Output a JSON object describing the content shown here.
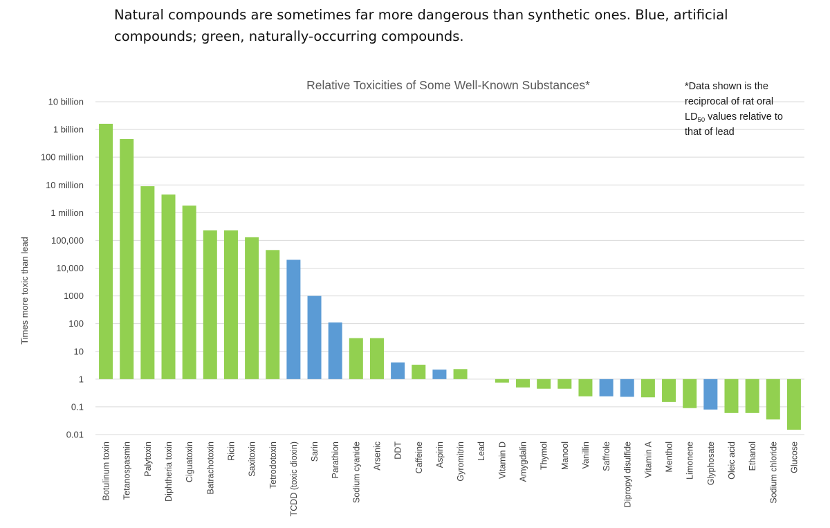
{
  "caption": "Natural compounds are sometimes far more dangerous than synthetic ones. Blue, artificial compounds; green, naturally-occurring compounds.",
  "colors": {
    "natural": "#92d050",
    "artificial": "#5b9bd5",
    "grid": "#d9d9d9",
    "text": "#404040",
    "title": "#595959"
  },
  "chart_data": {
    "type": "bar",
    "title": "Relative Toxicities of Some Well-Known Substances*",
    "ylabel": "Times more toxic than lead",
    "xlabel": "",
    "yscale": "log",
    "ylim": [
      0.01,
      10000000000
    ],
    "baseline": 1,
    "grid": true,
    "yticks": [
      10000000000,
      1000000000,
      100000000,
      10000000,
      1000000,
      100000,
      10000,
      1000,
      100,
      10,
      1,
      0.1,
      0.01
    ],
    "yticklabels": [
      "10 billion",
      "1 billion",
      "100 million",
      "10 million",
      "1 million",
      "100,000",
      "10,000",
      "1000",
      "100",
      "10",
      "1",
      "0.1",
      "0.01"
    ],
    "note": {
      "line1": "*Data shown is the",
      "line2": "reciprocal of rat oral",
      "line3_prefix": "LD",
      "line3_sub": "50",
      "line3_suffix": " values relative to",
      "line4": "that of lead"
    },
    "categories": [
      "Botulinum toxin",
      "Tetanospasmin",
      "Palytoxin",
      "Diphtheria toxin",
      "Ciguatoxin",
      "Batrachotoxin",
      "Ricin",
      "Saxitoxin",
      "Tetrodotoxin",
      "TCDD (toxic dioxin)",
      "Sarin",
      "Parathion",
      "Sodium cyanide",
      "Arsenic",
      "DDT",
      "Caffeine",
      "Aspirin",
      "Gyromitrin",
      "Lead",
      "Vitamin D",
      "Amygdalin",
      "Thymol",
      "Manool",
      "Vanillin",
      "Saffrole",
      "Dipropyl disulfide",
      "Vitamin A",
      "Menthol",
      "Limonene",
      "Glyphosate",
      "Oleic acid",
      "Ethanol",
      "Sodium chloride",
      "Glucose"
    ],
    "values": [
      1600000000,
      450000000,
      9000000,
      4500000,
      1800000,
      230000,
      230000,
      130000,
      45000,
      20000,
      1000,
      110,
      30,
      30,
      4,
      3.3,
      2.2,
      2.3,
      1,
      0.75,
      0.5,
      0.45,
      0.45,
      0.24,
      0.24,
      0.23,
      0.22,
      0.15,
      0.09,
      0.08,
      0.06,
      0.06,
      0.035,
      0.015
    ],
    "kinds": [
      "natural",
      "natural",
      "natural",
      "natural",
      "natural",
      "natural",
      "natural",
      "natural",
      "natural",
      "artificial",
      "artificial",
      "artificial",
      "natural",
      "natural",
      "artificial",
      "natural",
      "artificial",
      "natural",
      "natural",
      "natural",
      "natural",
      "natural",
      "natural",
      "natural",
      "artificial",
      "artificial",
      "natural",
      "natural",
      "natural",
      "artificial",
      "natural",
      "natural",
      "natural",
      "natural"
    ]
  }
}
